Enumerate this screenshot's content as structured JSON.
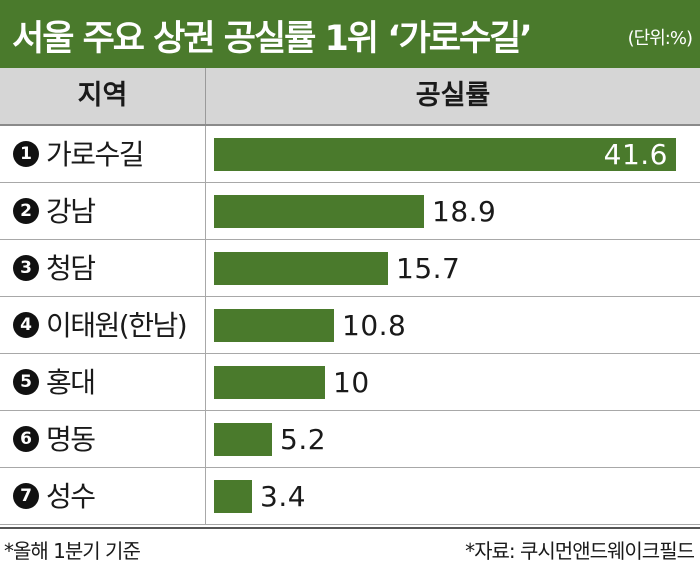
{
  "chart_data": {
    "type": "bar",
    "orientation": "horizontal",
    "title": "서울 주요 상권 공실률 1위 ‘가로수길’",
    "unit": "(단위:%)",
    "columns": {
      "region": "지역",
      "value": "공실률"
    },
    "rows": [
      {
        "rank": "1",
        "region": "가로수길",
        "value": 41.6,
        "label": "41.6"
      },
      {
        "rank": "2",
        "region": "강남",
        "value": 18.9,
        "label": "18.9"
      },
      {
        "rank": "3",
        "region": "청담",
        "value": 15.7,
        "label": "15.7"
      },
      {
        "rank": "4",
        "region": "이태원(한남)",
        "value": 10.8,
        "label": "10.8"
      },
      {
        "rank": "5",
        "region": "홍대",
        "value": 10,
        "label": "10"
      },
      {
        "rank": "6",
        "region": "명동",
        "value": 5.2,
        "label": "5.2"
      },
      {
        "rank": "7",
        "region": "성수",
        "value": 3.4,
        "label": "3.4"
      }
    ],
    "grid": false,
    "bar_color": "#4a7a2c"
  },
  "footnote": "*올해 1분기 기준",
  "source": "*자료: 쿠시먼앤드웨이크필드",
  "colors": {
    "accent": "#4a7a2c",
    "header_bg": "#d6d6d6"
  }
}
